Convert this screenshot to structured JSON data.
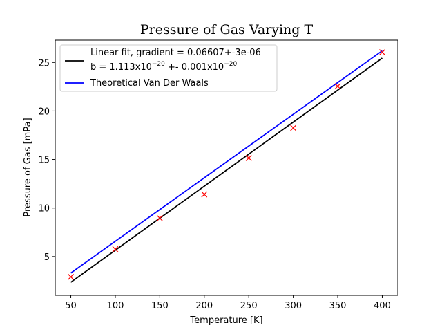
{
  "chart_data": {
    "type": "line",
    "title": "Pressure of Gas Varying T",
    "xlabel": "Temperature [K]",
    "ylabel": "Pressure of Gas [mPa]",
    "xlim": [
      32.5,
      417.5
    ],
    "ylim": [
      1.0,
      27.3
    ],
    "x_ticks": [
      50,
      100,
      150,
      200,
      250,
      300,
      350,
      400
    ],
    "y_ticks": [
      5,
      10,
      15,
      20,
      25
    ],
    "grid": false,
    "legend_position": "top-left",
    "series": [
      {
        "name": "Linear fit, gradient = 0.06607+-3e-06 b = 1.113x10^-20 +- 0.001x10^-20",
        "kind": "line",
        "color": "#000000",
        "x": [
          50,
          400
        ],
        "y": [
          2.35,
          25.45
        ]
      },
      {
        "name": "Theoretical Van Der Waals",
        "kind": "line",
        "color": "#0000ff",
        "x": [
          50,
          400
        ],
        "y": [
          3.3,
          26.2
        ]
      },
      {
        "kind": "scatter",
        "marker": "x",
        "color": "#ff0000",
        "x": [
          50,
          100,
          150,
          200,
          250,
          300,
          350,
          400
        ],
        "y": [
          2.9,
          5.75,
          8.95,
          11.4,
          15.15,
          18.25,
          22.55,
          26.05
        ]
      }
    ],
    "legend": {
      "fit_line1": "Linear fit, gradient = 0.06607+-3e-06",
      "fit_line2_prefix": " b = 1.113x10",
      "fit_line2_exp1": "−20",
      "fit_line2_mid": " +- 0.001x10",
      "fit_line2_exp2": "−20",
      "theory": "Theoretical Van Der Waals"
    }
  }
}
